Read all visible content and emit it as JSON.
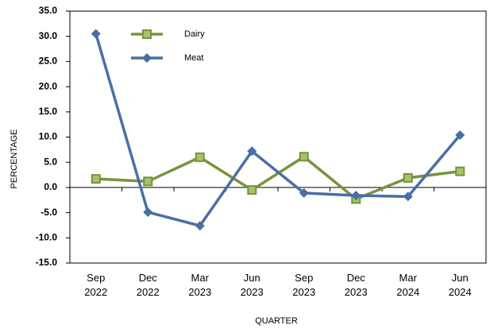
{
  "chart_data": {
    "type": "line",
    "categories": [
      "Sep 2022",
      "Dec 2022",
      "Mar 2023",
      "Jun 2023",
      "Sep 2023",
      "Dec 2023",
      "Mar 2024",
      "Jun 2024"
    ],
    "series": [
      {
        "name": "Dairy",
        "color": "#77933c",
        "marker": "square",
        "values": [
          1.7,
          1.2,
          6.0,
          -0.5,
          6.1,
          -2.3,
          1.9,
          3.2
        ]
      },
      {
        "name": "Meat",
        "color": "#4a6ea6",
        "marker": "diamond",
        "values": [
          30.5,
          -4.9,
          -7.6,
          7.2,
          -1.1,
          -1.6,
          -1.8,
          10.4
        ]
      }
    ],
    "xlabel": "QUARTER",
    "ylabel": "PERCENTAGE",
    "ylim": [
      -15,
      35
    ],
    "yticks": [
      {
        "value": -15,
        "label": "-15.0"
      },
      {
        "value": -10,
        "label": "-10.0"
      },
      {
        "value": -5,
        "label": "-5.0"
      },
      {
        "value": 0,
        "label": "0.0"
      },
      {
        "value": 5,
        "label": "5.0"
      },
      {
        "value": 10,
        "label": "10.0"
      },
      {
        "value": 15,
        "label": "15.0"
      },
      {
        "value": 20,
        "label": "20.0"
      },
      {
        "value": 25,
        "label": "25.0"
      },
      {
        "value": 30,
        "label": "30.0"
      },
      {
        "value": 35,
        "label": "35.0"
      }
    ],
    "grid": false,
    "legend": "upper left"
  }
}
